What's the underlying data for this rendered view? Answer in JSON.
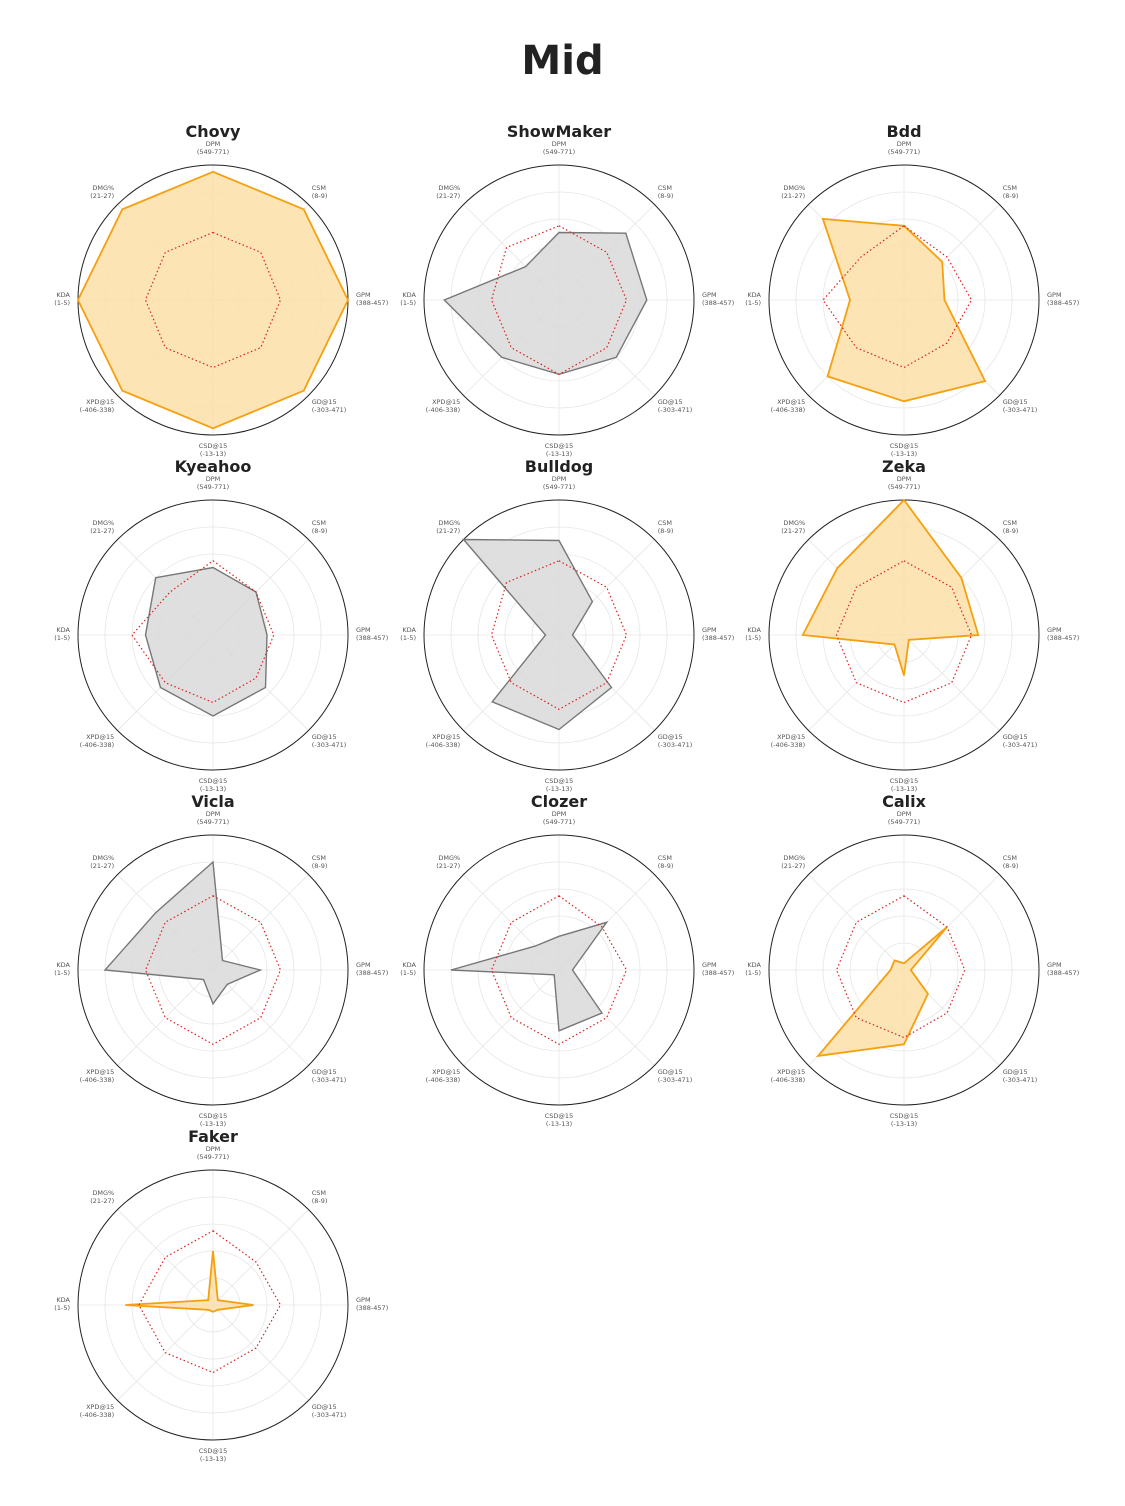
{
  "title": "Mid",
  "colors": {
    "orange_stroke": "#f5a00f",
    "orange_fill": "#fbdfa8",
    "gray_stroke": "#777777",
    "gray_fill": "#d9d9d9",
    "baseline": "#e01e1e",
    "ring": "#222222",
    "grid": "#e6e6e6"
  },
  "axes": [
    {
      "name": "DPM",
      "range": "(549-771)"
    },
    {
      "name": "CSM",
      "range": "(8-9)"
    },
    {
      "name": "GPM",
      "range": "(388-457)"
    },
    {
      "name": "GD@15",
      "range": "(-303-471)"
    },
    {
      "name": "CSD@15",
      "range": "(-13-13)"
    },
    {
      "name": "XPD@15",
      "range": "(-406-338)"
    },
    {
      "name": "KDA",
      "range": "(1-5)"
    },
    {
      "name": "DMG%",
      "range": "(21-27)"
    }
  ],
  "chart_data": [
    {
      "type": "radar",
      "title": "Chovy",
      "color": "orange",
      "values": [
        0.95,
        0.95,
        1.0,
        0.95,
        0.95,
        0.95,
        1.0,
        0.95
      ],
      "baseline": [
        0.5,
        0.5,
        0.5,
        0.5,
        0.5,
        0.5,
        0.5,
        0.5
      ]
    },
    {
      "type": "radar",
      "title": "ShowMaker",
      "color": "gray",
      "values": [
        0.5,
        0.7,
        0.65,
        0.6,
        0.55,
        0.6,
        0.85,
        0.35
      ],
      "baseline": [
        0.55,
        0.5,
        0.5,
        0.5,
        0.55,
        0.5,
        0.5,
        0.55
      ]
    },
    {
      "type": "radar",
      "title": "Bdd",
      "color": "orange",
      "values": [
        0.55,
        0.4,
        0.3,
        0.85,
        0.75,
        0.8,
        0.4,
        0.85
      ],
      "baseline": [
        0.55,
        0.45,
        0.5,
        0.45,
        0.5,
        0.5,
        0.6,
        0.45
      ]
    },
    {
      "type": "radar",
      "title": "Kyeahoo",
      "color": "gray",
      "values": [
        0.5,
        0.45,
        0.4,
        0.55,
        0.6,
        0.55,
        0.5,
        0.6
      ],
      "baseline": [
        0.55,
        0.45,
        0.45,
        0.45,
        0.5,
        0.5,
        0.6,
        0.45
      ]
    },
    {
      "type": "radar",
      "title": "Bulldog",
      "color": "gray",
      "values": [
        0.7,
        0.35,
        0.1,
        0.55,
        0.7,
        0.7,
        0.1,
        1.0
      ],
      "baseline": [
        0.55,
        0.5,
        0.5,
        0.5,
        0.55,
        0.5,
        0.5,
        0.55
      ]
    },
    {
      "type": "radar",
      "title": "Zeka",
      "color": "orange",
      "values": [
        1.0,
        0.6,
        0.55,
        0.05,
        0.3,
        0.1,
        0.75,
        0.7
      ],
      "baseline": [
        0.55,
        0.5,
        0.5,
        0.5,
        0.5,
        0.5,
        0.5,
        0.5
      ]
    },
    {
      "type": "radar",
      "title": "Vicla",
      "color": "gray",
      "values": [
        0.8,
        0.1,
        0.35,
        0.15,
        0.25,
        0.1,
        0.8,
        0.6
      ],
      "baseline": [
        0.55,
        0.5,
        0.5,
        0.5,
        0.55,
        0.5,
        0.5,
        0.5
      ]
    },
    {
      "type": "radar",
      "title": "Clozer",
      "color": "gray",
      "values": [
        0.25,
        0.5,
        0.1,
        0.45,
        0.45,
        0.05,
        0.8,
        0.25
      ],
      "baseline": [
        0.55,
        0.45,
        0.5,
        0.5,
        0.55,
        0.5,
        0.5,
        0.5
      ]
    },
    {
      "type": "radar",
      "title": "Calix",
      "color": "orange",
      "values": [
        0.05,
        0.45,
        0.05,
        0.25,
        0.55,
        0.9,
        0.1,
        0.1
      ],
      "baseline": [
        0.55,
        0.45,
        0.45,
        0.45,
        0.5,
        0.5,
        0.5,
        0.5
      ]
    },
    {
      "type": "radar",
      "title": "Faker",
      "color": "orange",
      "values": [
        0.4,
        0.05,
        0.3,
        0.05,
        0.05,
        0.05,
        0.65,
        0.05
      ],
      "baseline": [
        0.55,
        0.45,
        0.5,
        0.45,
        0.5,
        0.5,
        0.55,
        0.5
      ]
    }
  ]
}
